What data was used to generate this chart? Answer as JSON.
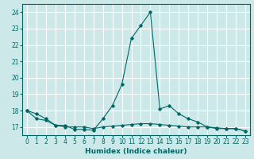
{
  "title": "",
  "xlabel": "Humidex (Indice chaleur)",
  "ylabel": "",
  "background_color": "#cce8e8",
  "grid_color": "#ffffff",
  "line_color": "#006666",
  "xlim": [
    -0.5,
    23.5
  ],
  "ylim": [
    16.5,
    24.5
  ],
  "yticks": [
    17,
    18,
    19,
    20,
    21,
    22,
    23,
    24
  ],
  "xticks": [
    0,
    1,
    2,
    3,
    4,
    5,
    6,
    7,
    8,
    9,
    10,
    11,
    12,
    13,
    14,
    15,
    16,
    17,
    18,
    19,
    20,
    21,
    22,
    23
  ],
  "line1_x": [
    0,
    1,
    2,
    3,
    4,
    5,
    6,
    7,
    8,
    9,
    10,
    11,
    12,
    13,
    14,
    15,
    16,
    17,
    18,
    19,
    20,
    21,
    22,
    23
  ],
  "line1_y": [
    18.0,
    17.8,
    17.5,
    17.1,
    17.1,
    16.85,
    16.85,
    16.8,
    17.5,
    18.3,
    19.6,
    22.4,
    23.2,
    24.0,
    18.1,
    18.3,
    17.8,
    17.5,
    17.3,
    17.0,
    16.9,
    16.9,
    16.9,
    16.75
  ],
  "line2_x": [
    0,
    1,
    2,
    3,
    4,
    5,
    6,
    7,
    8,
    9,
    10,
    11,
    12,
    13,
    14,
    15,
    16,
    17,
    18,
    19,
    20,
    21,
    22,
    23
  ],
  "line2_y": [
    18.0,
    17.5,
    17.4,
    17.1,
    17.0,
    17.0,
    17.0,
    16.9,
    17.0,
    17.05,
    17.1,
    17.15,
    17.2,
    17.2,
    17.15,
    17.1,
    17.05,
    17.0,
    17.0,
    17.0,
    16.95,
    16.9,
    16.9,
    16.75
  ],
  "tick_fontsize": 5.5,
  "xlabel_fontsize": 6.5
}
